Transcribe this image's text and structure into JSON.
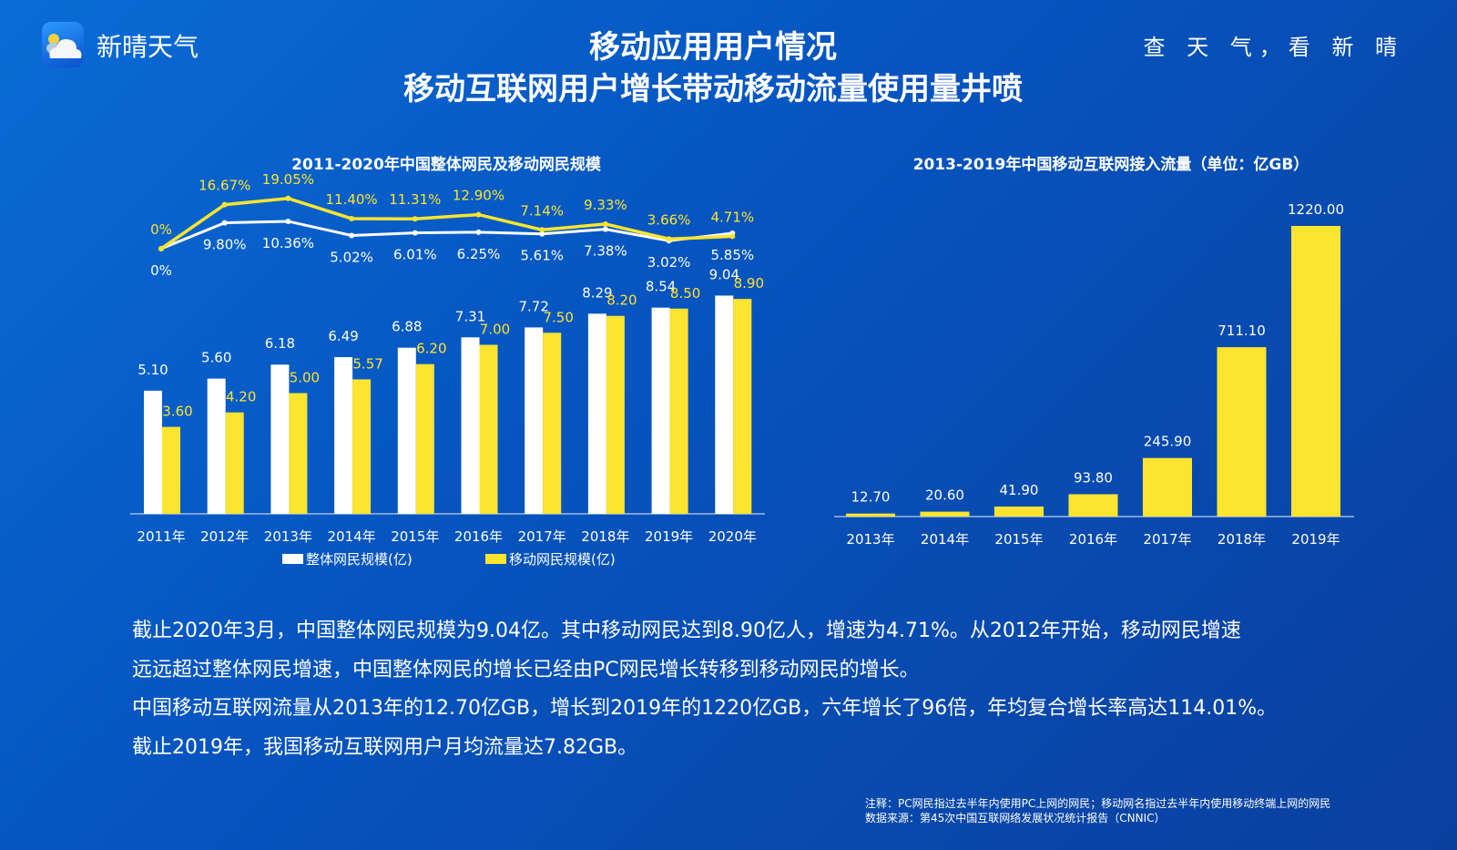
{
  "header": {
    "brand": "新晴天气",
    "slogan": "查 天 气，看 新 晴",
    "title": "移动应用用户情况",
    "subtitle": "移动互联网用户增长带动移动流量使用量井喷",
    "logo_icon": "cloud-sun-icon"
  },
  "colors": {
    "white_series": "#ffffff",
    "yellow_series": "#fde52f",
    "background": "#0655c0"
  },
  "chart_data": [
    {
      "type": "bar",
      "title": "2011-2020年中国整体网民及移动网民规模",
      "categories": [
        "2011年",
        "2012年",
        "2013年",
        "2014年",
        "2015年",
        "2016年",
        "2017年",
        "2018年",
        "2019年",
        "2020年"
      ],
      "series": [
        {
          "name": "整体网民规模(亿)",
          "color": "#ffffff",
          "values": [
            5.1,
            5.6,
            6.18,
            6.49,
            6.88,
            7.31,
            7.72,
            8.29,
            8.54,
            9.04
          ],
          "labels": [
            "5.10",
            "5.60",
            "6.18",
            "6.49",
            "6.88",
            "7.31",
            "7.72",
            "8.29",
            "8.54",
            "9.04"
          ]
        },
        {
          "name": "移动网民规模(亿)",
          "color": "#fde52f",
          "values": [
            3.6,
            4.2,
            5.0,
            5.57,
            6.2,
            7.0,
            7.5,
            8.2,
            8.5,
            8.9
          ],
          "labels": [
            "3.60",
            "4.20",
            "5.00",
            "5.57",
            "6.20",
            "7.00",
            "7.50",
            "8.20",
            "8.50",
            "8.90"
          ]
        }
      ],
      "growth_lines": [
        {
          "color": "#ffffff",
          "values": [
            0,
            9.8,
            10.36,
            5.02,
            6.01,
            6.25,
            5.61,
            7.38,
            3.02,
            5.85
          ],
          "labels": [
            "0%",
            "9.80%",
            "10.36%",
            "5.02%",
            "6.01%",
            "6.25%",
            "5.61%",
            "7.38%",
            "3.02%",
            "5.85%"
          ]
        },
        {
          "color": "#fde52f",
          "values": [
            0,
            16.67,
            19.05,
            11.4,
            11.31,
            12.9,
            7.14,
            9.33,
            3.66,
            4.71
          ],
          "labels": [
            "0%",
            "16.67%",
            "19.05%",
            "11.40%",
            "11.31%",
            "12.90%",
            "7.14%",
            "9.33%",
            "3.66%",
            "4.71%"
          ]
        }
      ],
      "legend": [
        "整体网民规模(亿)",
        "移动网民规模(亿)"
      ],
      "legend_placement": "bottom",
      "grid": false
    },
    {
      "type": "bar",
      "title": "2013-2019年中国移动互联网接入流量（单位：亿GB）",
      "categories": [
        "2013年",
        "2014年",
        "2015年",
        "2016年",
        "2017年",
        "2018年",
        "2019年"
      ],
      "values": [
        12.7,
        20.6,
        41.9,
        93.8,
        245.9,
        711.1,
        1220.0
      ],
      "labels": [
        "12.70",
        "20.60",
        "41.90",
        "93.80",
        "245.90",
        "711.10",
        "1220.00"
      ],
      "color": "#fde52f",
      "grid": false
    }
  ],
  "body": {
    "lines": [
      "截止2020年3月，中国整体网民规模为9.04亿。其中移动网民达到8.90亿人，增速为4.71%。从2012年开始，移动网民增速",
      "远远超过整体网民增速，中国整体网民的增长已经由PC网民增长转移到移动网民的增长。",
      "中国移动互联网流量从2013年的12.70亿GB，增长到2019年的1220亿GB，六年增长了96倍，年均复合增长率高达114.01%。",
      "截止2019年，我国移动互联网用户月均流量达7.82GB。"
    ]
  },
  "footer": {
    "note": "注释：PC网民指过去半年内使用PC上网的网民；移动网名指过去半年内使用移动终端上网的网民",
    "source": "数据来源：第45次中国互联网络发展状况统计报告（CNNIC）"
  }
}
